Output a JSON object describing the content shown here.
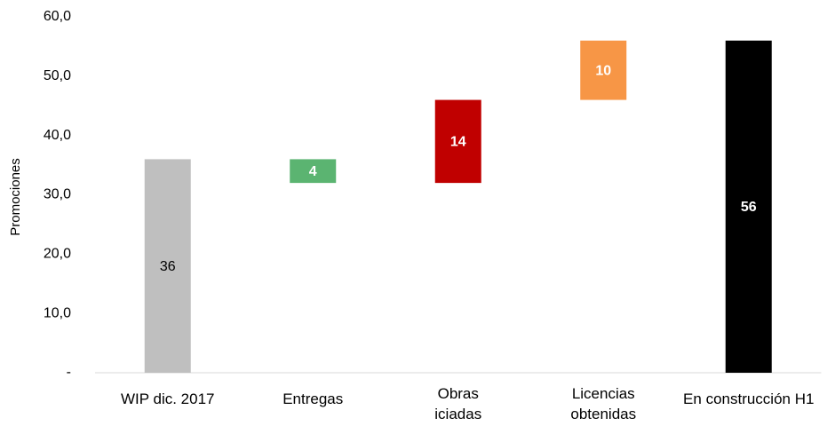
{
  "chart_data": {
    "type": "waterfall",
    "y_label": "Promociones",
    "categories": [
      "WIP dic. 2017",
      "Entregas",
      "Obras\niciadas",
      "Licencias\nobtenidas",
      "En construcción H1"
    ],
    "values": [
      36,
      -4,
      14,
      10,
      56
    ],
    "value_labels": [
      "36",
      "4",
      "14",
      "10",
      "56"
    ],
    "measures": [
      "absolute",
      "relative",
      "relative",
      "relative",
      "total"
    ],
    "colors": [
      "#bfbfbf",
      "#5bb471",
      "#c00000",
      "#f79646",
      "#000000"
    ],
    "label_colors": [
      "#000000",
      "#ffffff",
      "#ffffff",
      "#ffffff",
      "#ffffff"
    ],
    "ylim": [
      0,
      60
    ],
    "yticks": [
      {
        "value": 0,
        "label": "-"
      },
      {
        "value": 10,
        "label": "10,0"
      },
      {
        "value": 20,
        "label": "20,0"
      },
      {
        "value": 30,
        "label": "30,0"
      },
      {
        "value": 40,
        "label": "40,0"
      },
      {
        "value": 50,
        "label": "50,0"
      },
      {
        "value": 60,
        "label": "60,0"
      }
    ],
    "grid": false
  }
}
